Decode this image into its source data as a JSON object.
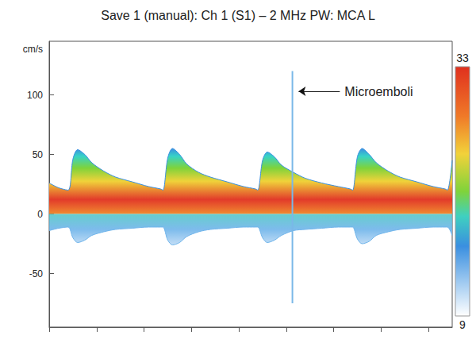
{
  "chart_data": {
    "type": "area",
    "title": "Save 1 (manual): Ch 1 (S1) – 2 MHz PW: MCA L",
    "y_label": "cm/s",
    "x": [
      0,
      0.2,
      0.4,
      0.5,
      0.6,
      0.75,
      0.9,
      1.15,
      1.4,
      1.75,
      2.1,
      2.35,
      2.4,
      2.5,
      2.6,
      2.75,
      2.9,
      3.15,
      3.4,
      3.75,
      4.1,
      4.35,
      4.4,
      4.5,
      4.6,
      4.75,
      4.9,
      5.15,
      5.4,
      5.75,
      6.1,
      6.35,
      6.4,
      6.5,
      6.6,
      6.75,
      6.9,
      7.15,
      7.4,
      7.75,
      8.1,
      8.35,
      8.4,
      8.5
    ],
    "series": [
      {
        "color": "#e23b2a",
        "values": [
          26,
          22,
          20,
          46,
          54,
          50,
          43,
          36,
          31,
          27,
          23,
          21,
          20,
          47,
          55,
          50,
          42,
          35,
          31,
          27,
          23,
          21,
          20,
          45,
          52,
          48,
          41,
          35,
          30,
          26,
          23,
          21,
          20,
          48,
          55,
          50,
          43,
          36,
          31,
          27,
          23,
          21,
          20,
          45
        ]
      },
      {
        "color": "#6fb4ea",
        "values": [
          -14,
          -12,
          -11,
          -20,
          -24,
          -22,
          -18,
          -15,
          -13,
          -12,
          -11,
          -11,
          -11,
          -22,
          -26,
          -24,
          -19,
          -15,
          -13,
          -12,
          -11,
          -11,
          -11,
          -20,
          -24,
          -22,
          -18,
          -14,
          -13,
          -12,
          -11,
          -11,
          -11,
          -21,
          -25,
          -23,
          -18,
          -15,
          -13,
          -12,
          -11,
          -11,
          -11,
          -18
        ]
      }
    ],
    "xlim": [
      0,
      8.5
    ],
    "xticks": [
      0,
      1,
      2,
      3,
      4,
      5,
      6,
      7,
      8
    ],
    "ylim": [
      -95,
      145
    ],
    "yticks": [
      -50,
      0,
      50,
      100
    ],
    "tick_labels": "y",
    "grid": false,
    "spike": {
      "x": 5.13,
      "values": [
        -75,
        120
      ],
      "color": "#7ab8e8"
    },
    "annotations": [
      {
        "text": "Microemboli",
        "x": 5.13,
        "y": 103
      }
    ],
    "colorbar": {
      "range": [
        9,
        33
      ],
      "ticks": [
        9,
        33
      ]
    }
  }
}
